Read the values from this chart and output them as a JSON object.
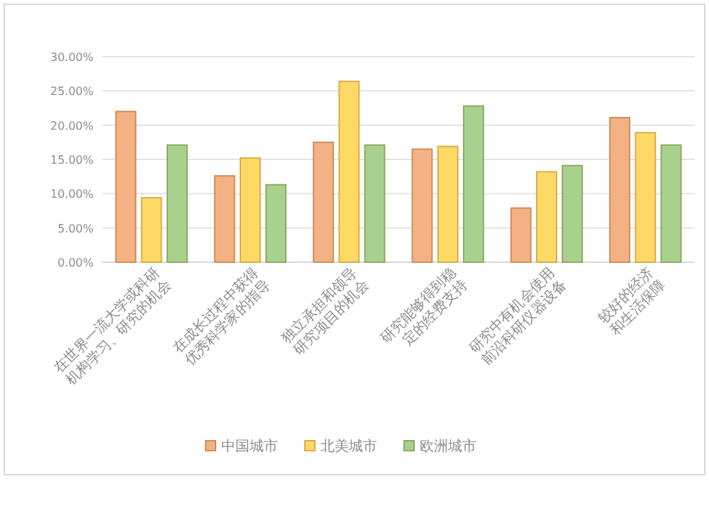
{
  "chart_data": {
    "type": "bar",
    "categories": [
      "在世界一流大学或科研机构学习、研究的机会",
      "在成长过程中获得优秀科学家的指导",
      "独立承担和领导研究项目的机会",
      "研究能够得到稳定的经费支持",
      "研究中有机会使用前沿科研仪器设备",
      "较好的经济和生活保障"
    ],
    "series": [
      {
        "name": "中国城市",
        "color": "#f4b183",
        "values": [
          22.0,
          12.6,
          17.5,
          16.5,
          7.9,
          21.1
        ]
      },
      {
        "name": "北美城市",
        "color": "#ffd966",
        "values": [
          9.4,
          15.2,
          26.4,
          16.9,
          13.2,
          18.9
        ]
      },
      {
        "name": "欧洲城市",
        "color": "#a9d18e",
        "values": [
          17.1,
          11.3,
          17.1,
          22.8,
          14.1,
          17.1
        ]
      }
    ],
    "ylim": [
      0,
      30
    ],
    "yticks": [
      {
        "value": 0,
        "label": "0.00%"
      },
      {
        "value": 5,
        "label": "5.00%"
      },
      {
        "value": 10,
        "label": "10.00%"
      },
      {
        "value": 15,
        "label": "15.00%"
      },
      {
        "value": 20,
        "label": "20.00%"
      },
      {
        "value": 25,
        "label": "25.00%"
      },
      {
        "value": 30,
        "label": "30.00%"
      }
    ],
    "grid": "y",
    "legend": "bottom"
  }
}
